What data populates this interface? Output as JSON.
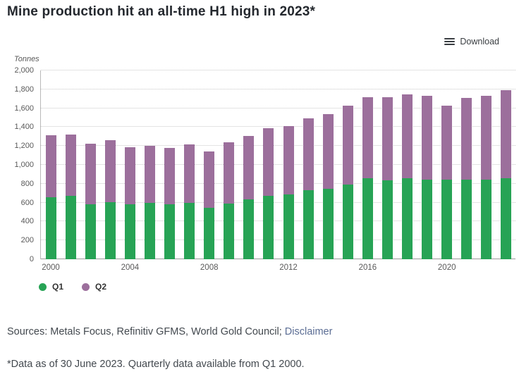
{
  "title": "Mine production hit an all-time H1 high in 2023*",
  "toolbar": {
    "download_label": "Download"
  },
  "chart_data": {
    "type": "bar",
    "stacked": true,
    "title": "Mine production hit an all-time H1 high in 2023*",
    "unit_label": "Tonnes",
    "ylim": [
      0,
      2000
    ],
    "ytick_step": 200,
    "grid": "horizontal-dotted",
    "legend_position": "bottom-left",
    "categories": [
      2000,
      2001,
      2002,
      2003,
      2004,
      2005,
      2006,
      2007,
      2008,
      2009,
      2010,
      2011,
      2012,
      2013,
      2014,
      2015,
      2016,
      2017,
      2018,
      2019,
      2020,
      2021,
      2022,
      2023
    ],
    "xtick_labels": [
      "2000",
      "2004",
      "2008",
      "2012",
      "2016",
      "2020"
    ],
    "series": [
      {
        "name": "Q1",
        "color": "#27a355",
        "values": [
          655,
          670,
          580,
          605,
          585,
          595,
          585,
          600,
          545,
          590,
          635,
          670,
          690,
          730,
          750,
          790,
          860,
          835,
          855,
          845,
          845,
          840,
          840,
          855
        ]
      },
      {
        "name": "Q2",
        "color": "#9c6f9c",
        "values": [
          655,
          650,
          645,
          660,
          605,
          605,
          595,
          620,
          600,
          650,
          670,
          715,
          720,
          760,
          790,
          840,
          860,
          885,
          895,
          885,
          785,
          870,
          895,
          935
        ]
      }
    ],
    "totals": [
      1310,
      1320,
      1225,
      1265,
      1190,
      1200,
      1180,
      1220,
      1145,
      1240,
      1305,
      1385,
      1410,
      1490,
      1540,
      1630,
      1720,
      1720,
      1750,
      1730,
      1630,
      1710,
      1735,
      1790
    ]
  },
  "footer": {
    "sources_prefix": "Sources: Metals Focus, Refinitiv GFMS, World Gold Council; ",
    "disclaimer_label": "Disclaimer",
    "footnote": "*Data as of 30 June 2023. Quarterly data available from Q1 2000."
  },
  "colors": {
    "q1_green": "#27a355",
    "q2_mauve": "#9c6f9c",
    "gridline": "#c9c9c9",
    "axis_text": "#595959",
    "title_text": "#24282e",
    "link": "#5b6d94"
  }
}
